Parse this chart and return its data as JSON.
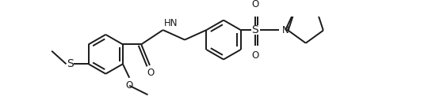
{
  "line_color": "#1a1a1a",
  "bg_color": "#ffffff",
  "line_width": 1.4,
  "font_size": 8.5,
  "fig_width": 5.45,
  "fig_height": 1.27,
  "dpi": 100,
  "xlim": [
    0,
    5.45
  ],
  "ylim": [
    0,
    1.27
  ]
}
